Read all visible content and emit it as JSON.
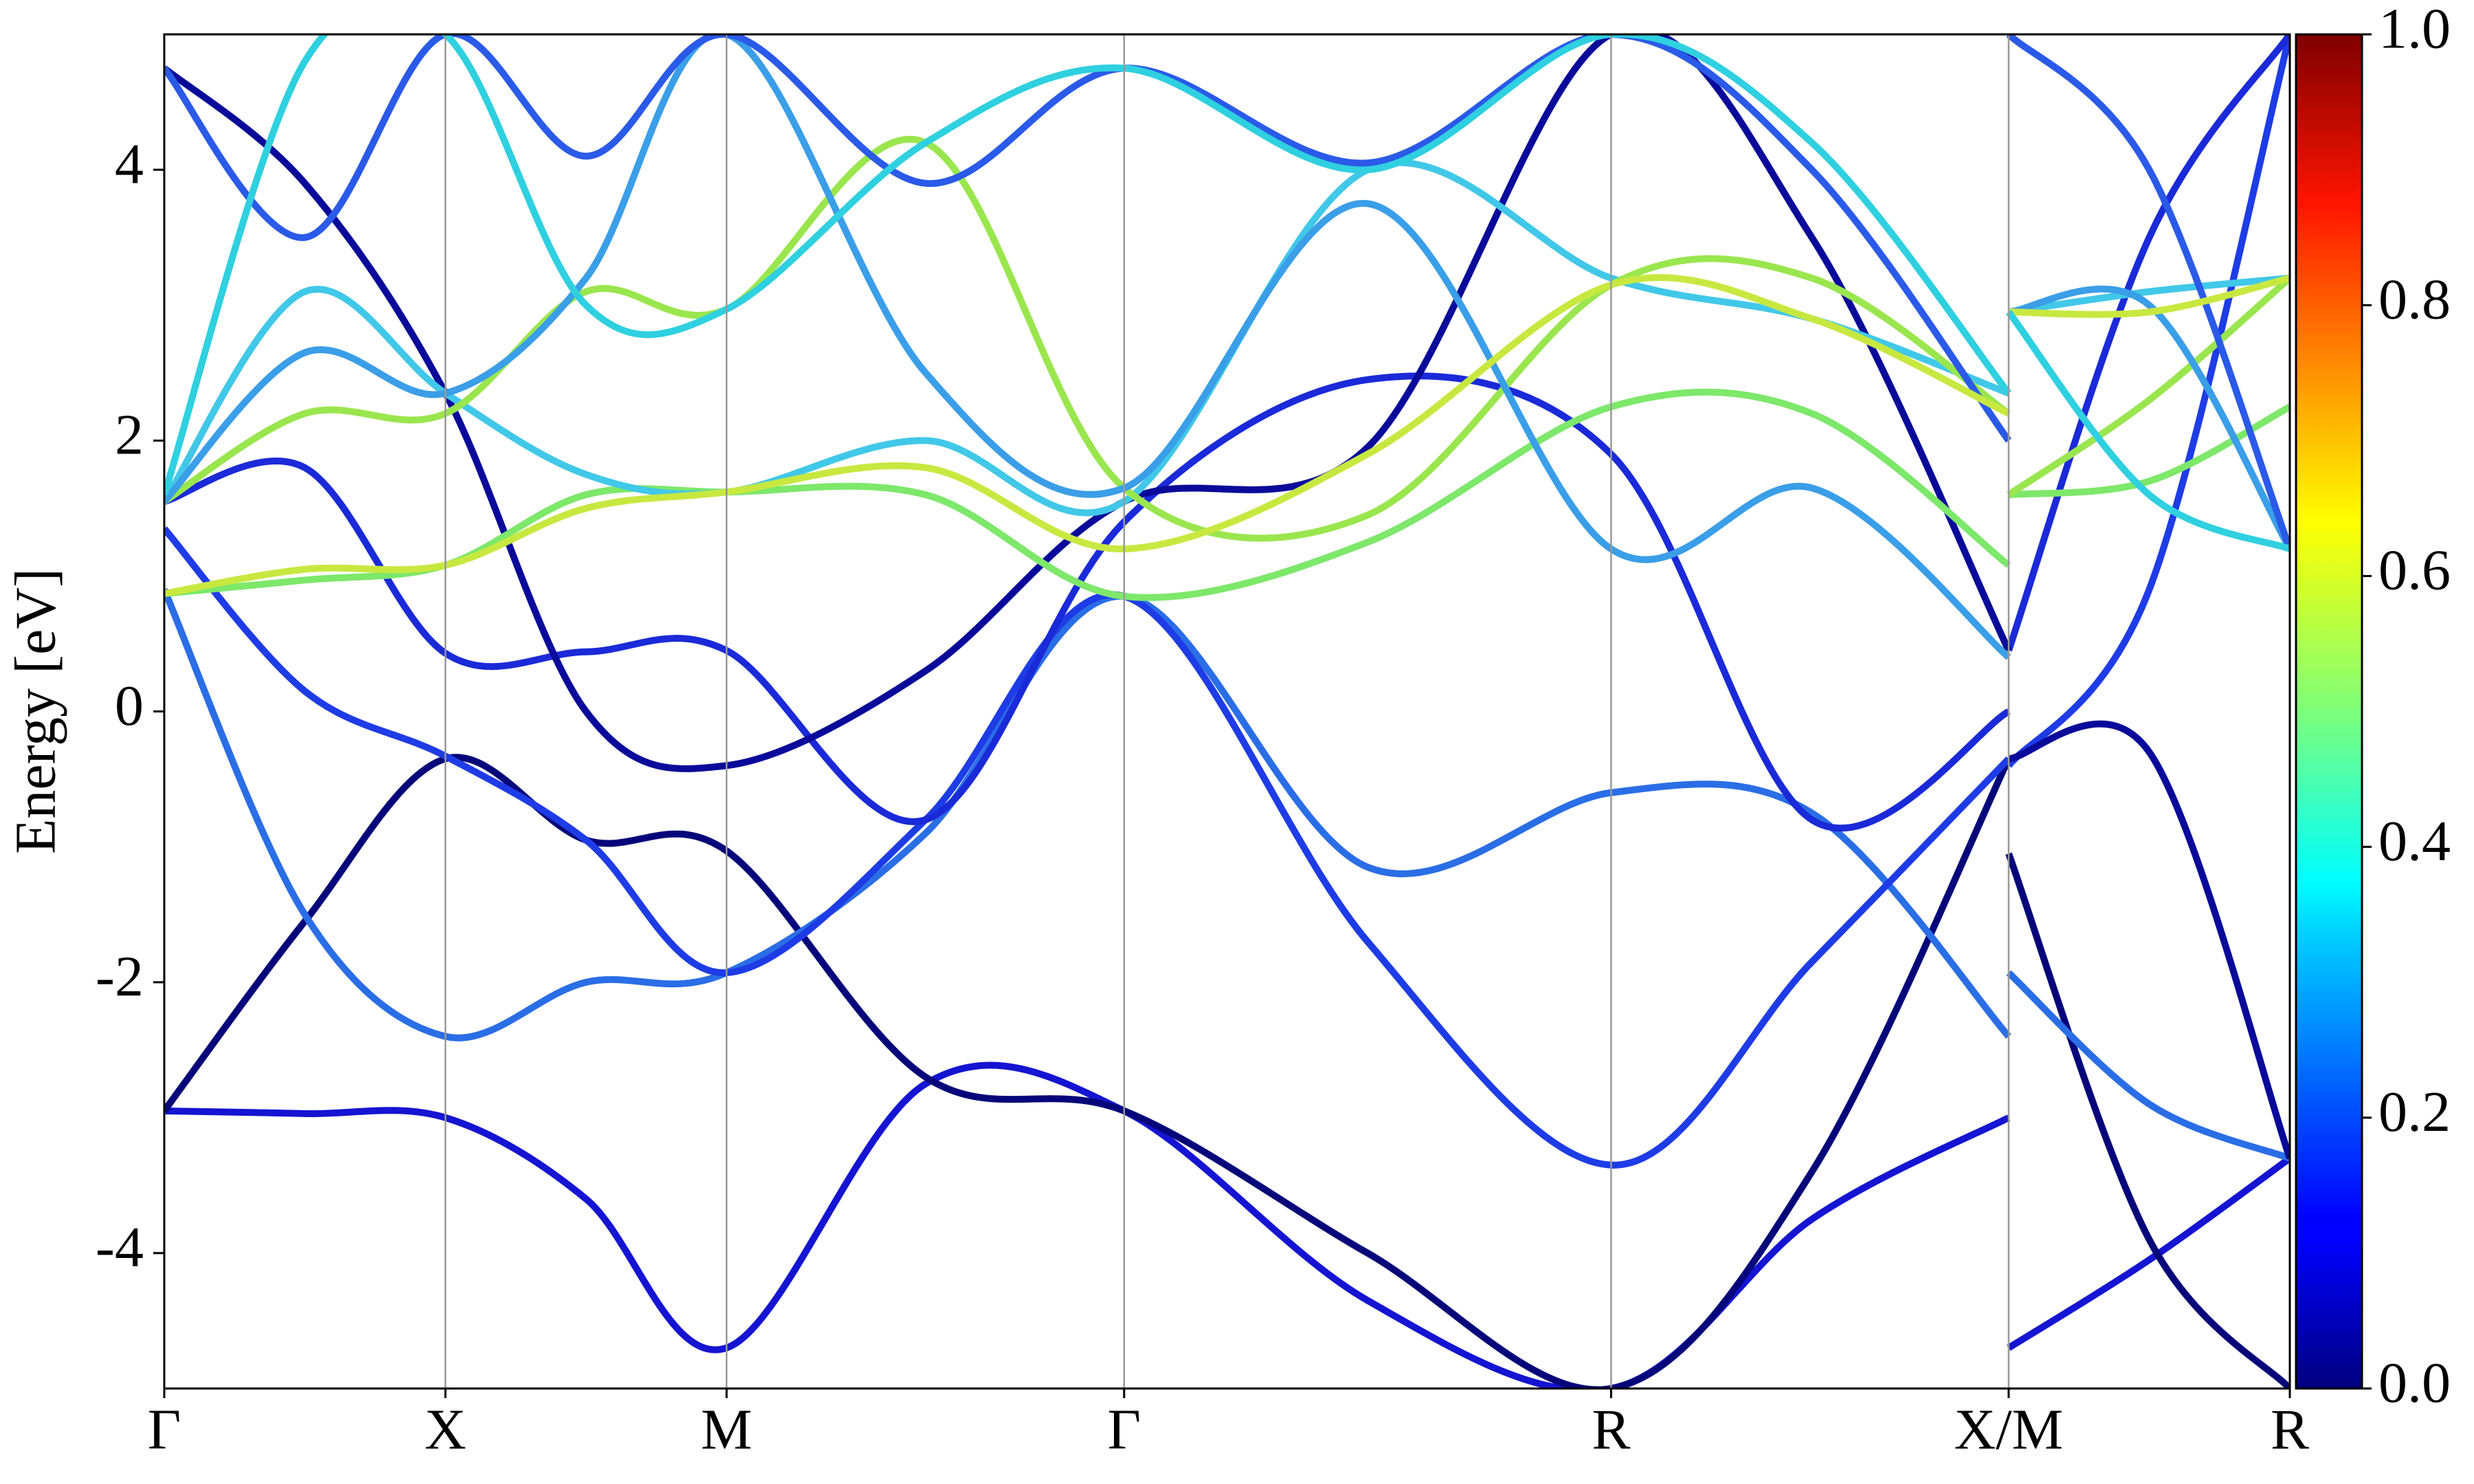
{
  "chart_data": {
    "type": "line",
    "y_label": "Energy [eV]",
    "xlim": [
      0,
      3.78
    ],
    "xticks": [
      {
        "value": 0,
        "label": "Γ"
      },
      {
        "value": 0.5,
        "label": "X"
      },
      {
        "value": 1.0,
        "label": "M"
      },
      {
        "value": 1.707,
        "label": "Γ"
      },
      {
        "value": 2.573,
        "label": "R"
      },
      {
        "value": 3.28,
        "label": "X/M"
      },
      {
        "value": 3.78,
        "label": "R"
      }
    ],
    "ylim": [
      -5,
      5
    ],
    "yticks": [
      -4,
      -2,
      0,
      2,
      4
    ],
    "grid": "x",
    "x": [
      0,
      0.25,
      0.5,
      0.75,
      1.0,
      1.354,
      1.707,
      2.14,
      2.573,
      2.93,
      3.28,
      3.28,
      3.28,
      3.53,
      3.78
    ],
    "series": [
      {
        "color": "#1414d2",
        "values": [
          -2.95,
          -2.97,
          -3.0,
          -3.6,
          -4.7,
          -2.75,
          -2.95,
          -4.35,
          -5.0,
          -3.75,
          -3.0,
          null,
          -4.7,
          -4.05,
          -3.3
        ]
      },
      {
        "color": "#06067a",
        "values": [
          -2.95,
          -1.55,
          -0.35,
          -0.95,
          -1.03,
          -2.7,
          -2.95,
          -4.0,
          -5.0,
          -3.4,
          -0.35,
          null,
          -1.05,
          -3.9,
          -5.0
        ]
      },
      {
        "color": "#2a6ee6",
        "values": [
          0.9,
          -1.5,
          -2.4,
          -2.0,
          -1.93,
          -0.9,
          0.85,
          -1.15,
          -0.6,
          -0.75,
          -2.4,
          null,
          -1.93,
          -2.9,
          -3.3
        ]
      },
      {
        "color": "#1e3ce6",
        "values": [
          1.35,
          0.15,
          -0.33,
          -0.95,
          -1.93,
          -0.8,
          0.85,
          -1.7,
          -3.35,
          -1.85,
          -0.35,
          null,
          -0.4,
          0.9,
          5.0
        ]
      },
      {
        "color": "#1a2ad8",
        "values": [
          1.55,
          1.8,
          0.43,
          0.44,
          0.45,
          -0.8,
          1.4,
          2.45,
          1.9,
          -0.8,
          0.0,
          null,
          0.45,
          3.5,
          5.0
        ]
      },
      {
        "color": "#0a0a9a",
        "values": [
          4.75,
          3.9,
          2.35,
          0.0,
          -0.4,
          0.3,
          1.55,
          1.95,
          5.0,
          3.5,
          0.45,
          null,
          -0.35,
          -0.3,
          -3.3
        ]
      },
      {
        "color": "#7de86a",
        "values": [
          0.87,
          0.97,
          1.08,
          1.6,
          1.62,
          1.6,
          0.85,
          1.25,
          2.25,
          2.2,
          1.08,
          null,
          1.6,
          1.7,
          2.25
        ]
      },
      {
        "color": "#41c8e8",
        "values": [
          1.55,
          3.1,
          2.35,
          1.75,
          1.62,
          2.0,
          1.55,
          4.0,
          3.2,
          2.9,
          2.35,
          null,
          2.95,
          3.1,
          3.2
        ]
      },
      {
        "color": "#9ae64e",
        "values": [
          1.55,
          2.2,
          2.2,
          3.1,
          2.97,
          4.2,
          1.65,
          1.45,
          3.15,
          3.2,
          2.2,
          null,
          1.6,
          2.3,
          3.2
        ]
      },
      {
        "color": "#3a9ee8",
        "values": [
          1.55,
          2.65,
          2.35,
          3.2,
          5.0,
          2.5,
          1.65,
          3.75,
          1.2,
          1.65,
          0.4,
          null,
          2.95,
          3.0,
          1.2
        ]
      },
      {
        "color": "#2a5ae8",
        "values": [
          4.75,
          3.5,
          5.0,
          4.1,
          5.0,
          3.9,
          4.75,
          4.05,
          5.0,
          4.0,
          2.0,
          null,
          5.0,
          4.0,
          1.2
        ]
      },
      {
        "color": "#c8e840",
        "values": [
          0.87,
          1.05,
          1.08,
          1.5,
          1.62,
          1.8,
          1.2,
          1.9,
          3.15,
          2.9,
          2.2,
          null,
          2.95,
          2.95,
          3.2
        ]
      },
      {
        "color": "#2fd0e0",
        "values": [
          1.6,
          4.8,
          5.0,
          3.0,
          2.97,
          4.2,
          4.75,
          4.0,
          5.0,
          4.2,
          2.35,
          null,
          2.95,
          1.6,
          1.2
        ]
      }
    ],
    "colorbar": {
      "colormap": "jet",
      "clim": [
        0,
        1
      ],
      "ticks": [
        {
          "value": 0,
          "label": "0.0"
        },
        0.2,
        0.4,
        0.6,
        0.8,
        {
          "value": 1,
          "label": "1.0"
        }
      ]
    }
  }
}
